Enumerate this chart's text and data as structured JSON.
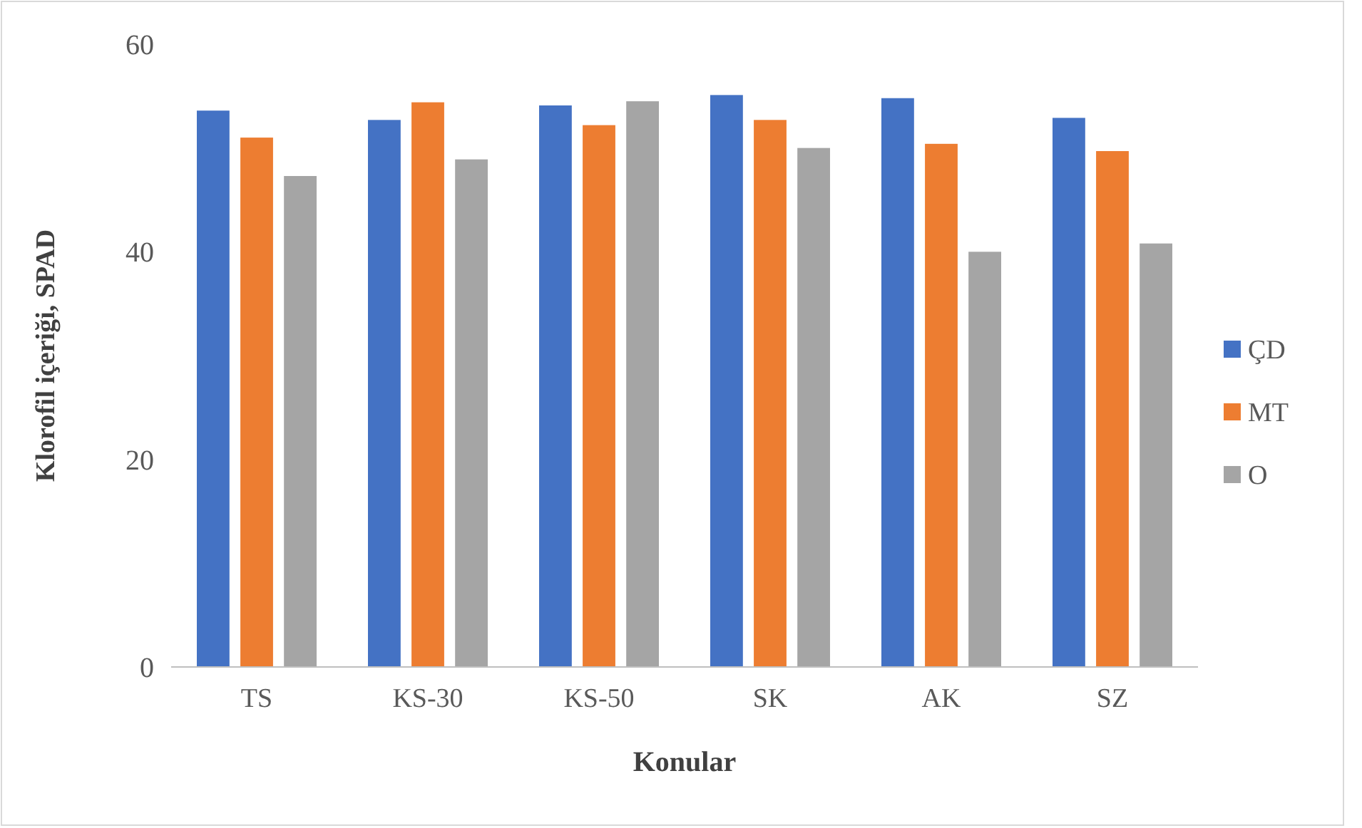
{
  "chart_data": {
    "type": "bar",
    "xlabel": "Konular",
    "ylabel": "Klorofil içeriği, SPAD",
    "categories": [
      "TS",
      "KS-30",
      "KS-50",
      "SK",
      "AK",
      "SZ"
    ],
    "series": [
      {
        "name": "ÇD",
        "color": "#4472c4",
        "values": [
          53.6,
          52.7,
          54.1,
          55.1,
          54.8,
          52.9
        ]
      },
      {
        "name": "MT",
        "color": "#ed7d31",
        "values": [
          51.0,
          54.4,
          52.2,
          52.7,
          50.4,
          49.7
        ]
      },
      {
        "name": "O",
        "color": "#a5a5a5",
        "values": [
          47.3,
          48.9,
          54.5,
          50.0,
          40.0,
          40.8
        ]
      }
    ],
    "ylim": [
      0,
      60
    ],
    "yticks": [
      0,
      20,
      40,
      60
    ],
    "grid": false,
    "legend": "right"
  }
}
